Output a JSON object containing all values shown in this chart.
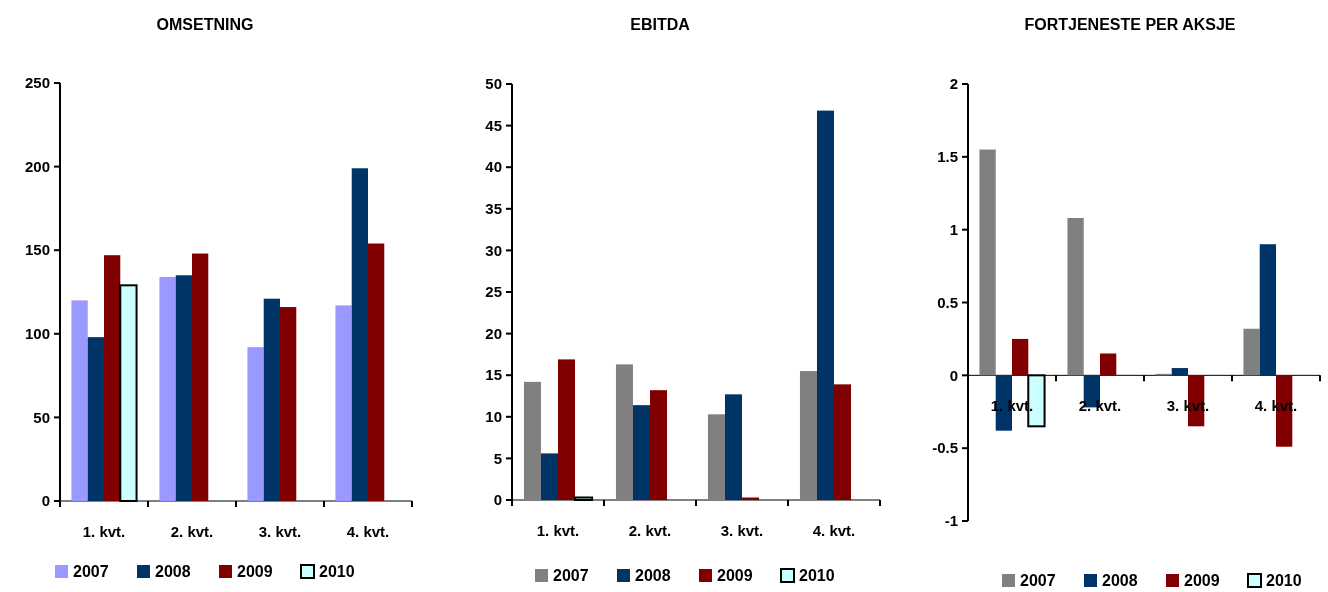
{
  "chart_data": [
    {
      "type": "bar",
      "title": "OMSETNING",
      "categories": [
        "1. kvt.",
        "2. kvt.",
        "3. kvt.",
        "4. kvt."
      ],
      "ylim": [
        0,
        250
      ],
      "yticks": [
        0,
        50,
        100,
        150,
        200,
        250
      ],
      "legend": "bottom",
      "grid": false,
      "series": [
        {
          "name": "2007",
          "color": "#9999ff",
          "values": [
            120,
            134,
            92,
            117
          ]
        },
        {
          "name": "2008",
          "color": "#003366",
          "values": [
            98,
            135,
            121,
            199
          ]
        },
        {
          "name": "2009",
          "color": "#800000",
          "values": [
            147,
            148,
            116,
            154
          ]
        },
        {
          "name": "2010",
          "color": "#ccffff",
          "values": [
            129,
            null,
            null,
            null
          ]
        }
      ]
    },
    {
      "type": "bar",
      "title": "EBITDA",
      "categories": [
        "1. kvt.",
        "2. kvt.",
        "3. kvt.",
        "4. kvt."
      ],
      "ylim": [
        0,
        50
      ],
      "yticks": [
        0,
        5,
        10,
        15,
        20,
        25,
        30,
        35,
        40,
        45,
        50
      ],
      "legend": "bottom",
      "grid": false,
      "series": [
        {
          "name": "2007",
          "color": "#808080",
          "values": [
            14.2,
            16.3,
            10.3,
            15.5
          ]
        },
        {
          "name": "2008",
          "color": "#003366",
          "values": [
            5.6,
            11.4,
            12.7,
            46.8
          ]
        },
        {
          "name": "2009",
          "color": "#800000",
          "values": [
            16.9,
            13.2,
            0.3,
            13.9
          ]
        },
        {
          "name": "2010",
          "color": "#ccffff",
          "values": [
            0.3,
            null,
            null,
            null
          ]
        }
      ]
    },
    {
      "type": "bar",
      "title": "FORTJENESTE PER AKSJE",
      "categories": [
        "1. kvt.",
        "2. kvt.",
        "3. kvt.",
        "4. kvt."
      ],
      "ylim": [
        -1,
        2
      ],
      "yticks": [
        -1,
        -0.5,
        0,
        0.5,
        1,
        1.5,
        2
      ],
      "legend": "bottom",
      "grid": false,
      "series": [
        {
          "name": "2007",
          "color": "#808080",
          "values": [
            1.55,
            1.08,
            0.01,
            0.32
          ]
        },
        {
          "name": "2008",
          "color": "#003366",
          "values": [
            -0.38,
            -0.22,
            0.05,
            0.9
          ]
        },
        {
          "name": "2009",
          "color": "#800000",
          "values": [
            0.25,
            0.15,
            -0.35,
            -0.49
          ]
        },
        {
          "name": "2010",
          "color": "#ccffff",
          "values": [
            -0.35,
            null,
            null,
            null
          ]
        }
      ]
    }
  ]
}
